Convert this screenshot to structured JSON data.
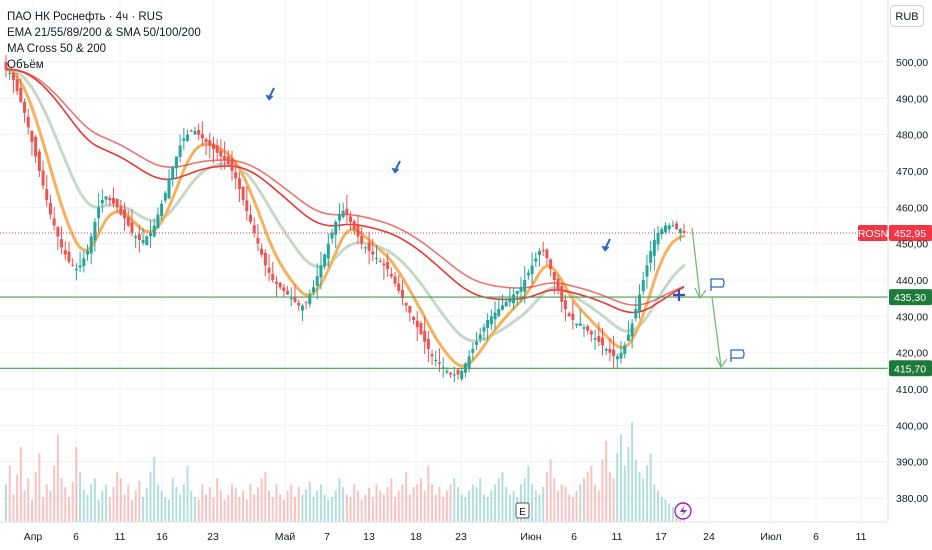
{
  "header": {
    "title": "ПАО НК Роснефть · 4ч · RUS",
    "indicators": [
      "EMA 21/55/89/200 & SMA 50/100/200",
      "MA Cross 50 & 200",
      "Объём"
    ],
    "currency": "RUB"
  },
  "colors": {
    "up": "#26a69a",
    "down": "#ef5350",
    "ema_fast": "#f7b15c",
    "ema_slow": "#c6d9c8",
    "ma_red": "#e53935",
    "level_line": "#4c9a52",
    "price_badge": "#f23645",
    "level_badge": "#1e7a3a",
    "arrow_blue": "#2d6bb5",
    "flag_blue": "#2d6bb5"
  },
  "chart_data": {
    "type": "candlestick",
    "symbol": "ROSN",
    "ylim": [
      373,
      507
    ],
    "y_ticks": [
      "500,00",
      "490,00",
      "480,00",
      "470,00",
      "460,00",
      "450,00",
      "440,00",
      "430,00",
      "420,00",
      "410,00",
      "400,00",
      "390,00",
      "380,00"
    ],
    "x_ticks": [
      "Апр",
      "6",
      "11",
      "16",
      "23",
      "Май",
      "7",
      "13",
      "18",
      "23",
      "Июн",
      "6",
      "11",
      "17",
      "24",
      "Июл",
      "6",
      "11"
    ],
    "close": [
      498,
      497,
      495,
      492,
      489,
      486,
      482,
      478,
      474,
      470,
      466,
      462,
      458,
      455,
      452,
      449,
      447,
      445,
      444,
      443,
      444,
      446,
      448,
      452,
      456,
      460,
      462,
      463,
      462,
      461,
      460,
      458,
      457,
      455,
      453,
      452,
      451,
      451,
      452,
      453,
      455,
      458,
      461,
      464,
      468,
      471,
      474,
      477,
      479,
      480,
      481,
      481,
      480,
      479,
      478,
      477,
      476,
      475,
      474,
      473,
      472,
      470,
      468,
      465,
      462,
      459,
      456,
      453,
      450,
      447,
      444,
      442,
      440,
      439,
      438,
      437,
      436,
      435,
      434,
      433,
      433,
      434,
      436,
      438,
      441,
      444,
      447,
      450,
      453,
      456,
      458,
      459,
      458,
      456,
      454,
      452,
      450,
      449,
      448,
      447,
      446,
      445,
      444,
      443,
      441,
      439,
      437,
      435,
      433,
      431,
      429,
      427,
      425,
      423,
      421,
      419,
      418,
      417,
      416,
      415,
      414,
      414,
      414,
      415,
      417,
      419,
      421,
      423,
      425,
      427,
      429,
      430,
      431,
      432,
      433,
      434,
      435,
      436,
      437,
      438,
      440,
      442,
      444,
      446,
      448,
      448,
      446,
      443,
      440,
      437,
      434,
      432,
      430,
      429,
      428,
      428,
      427,
      426,
      425,
      424,
      423,
      422,
      421,
      420,
      419,
      419,
      420,
      422,
      425,
      428,
      432,
      436,
      440,
      444,
      448,
      451,
      453,
      454,
      455,
      455,
      455,
      454,
      454,
      453
    ],
    "price_label": "452,95",
    "levels": [
      {
        "value": 435.3,
        "label": "435,30"
      },
      {
        "value": 415.7,
        "label": "415,70"
      }
    ],
    "volume_ylim": [
      0,
      100
    ],
    "volume": [
      30,
      45,
      22,
      38,
      60,
      25,
      35,
      18,
      40,
      55,
      20,
      30,
      25,
      45,
      70,
      35,
      28,
      20,
      32,
      60,
      40,
      26,
      22,
      30,
      35,
      18,
      25,
      30,
      20,
      28,
      40,
      35,
      22,
      30,
      18,
      25,
      33,
      20,
      27,
      40,
      52,
      30,
      25,
      20,
      18,
      35,
      28,
      22,
      30,
      45,
      25,
      20,
      18,
      30,
      22,
      28,
      20,
      35,
      25,
      18,
      22,
      30,
      27,
      20,
      25,
      18,
      30,
      22,
      28,
      35,
      40,
      25,
      20,
      30,
      22,
      18,
      25,
      30,
      20,
      28,
      22,
      26,
      32,
      20,
      25,
      30,
      22,
      18,
      20,
      25,
      35,
      28,
      22,
      20,
      30,
      25,
      18,
      22,
      27,
      20,
      30,
      25,
      22,
      28,
      35,
      20,
      25,
      30,
      40,
      22,
      28,
      30,
      35,
      25,
      45,
      30,
      22,
      28,
      20,
      25,
      30,
      35,
      28,
      22,
      20,
      25,
      30,
      28,
      35,
      22,
      20,
      25,
      30,
      35,
      40,
      28,
      22,
      25,
      20,
      30,
      35,
      45,
      30,
      25,
      22,
      28,
      40,
      50,
      35,
      25,
      30,
      28,
      22,
      20,
      25,
      30,
      35,
      40,
      45,
      30,
      25,
      50,
      65,
      40,
      35,
      55,
      70,
      45,
      60,
      80,
      50,
      40,
      35,
      45,
      55,
      30,
      25,
      20,
      18,
      15,
      12,
      10,
      8,
      6
    ],
    "markers": [
      "E"
    ]
  }
}
